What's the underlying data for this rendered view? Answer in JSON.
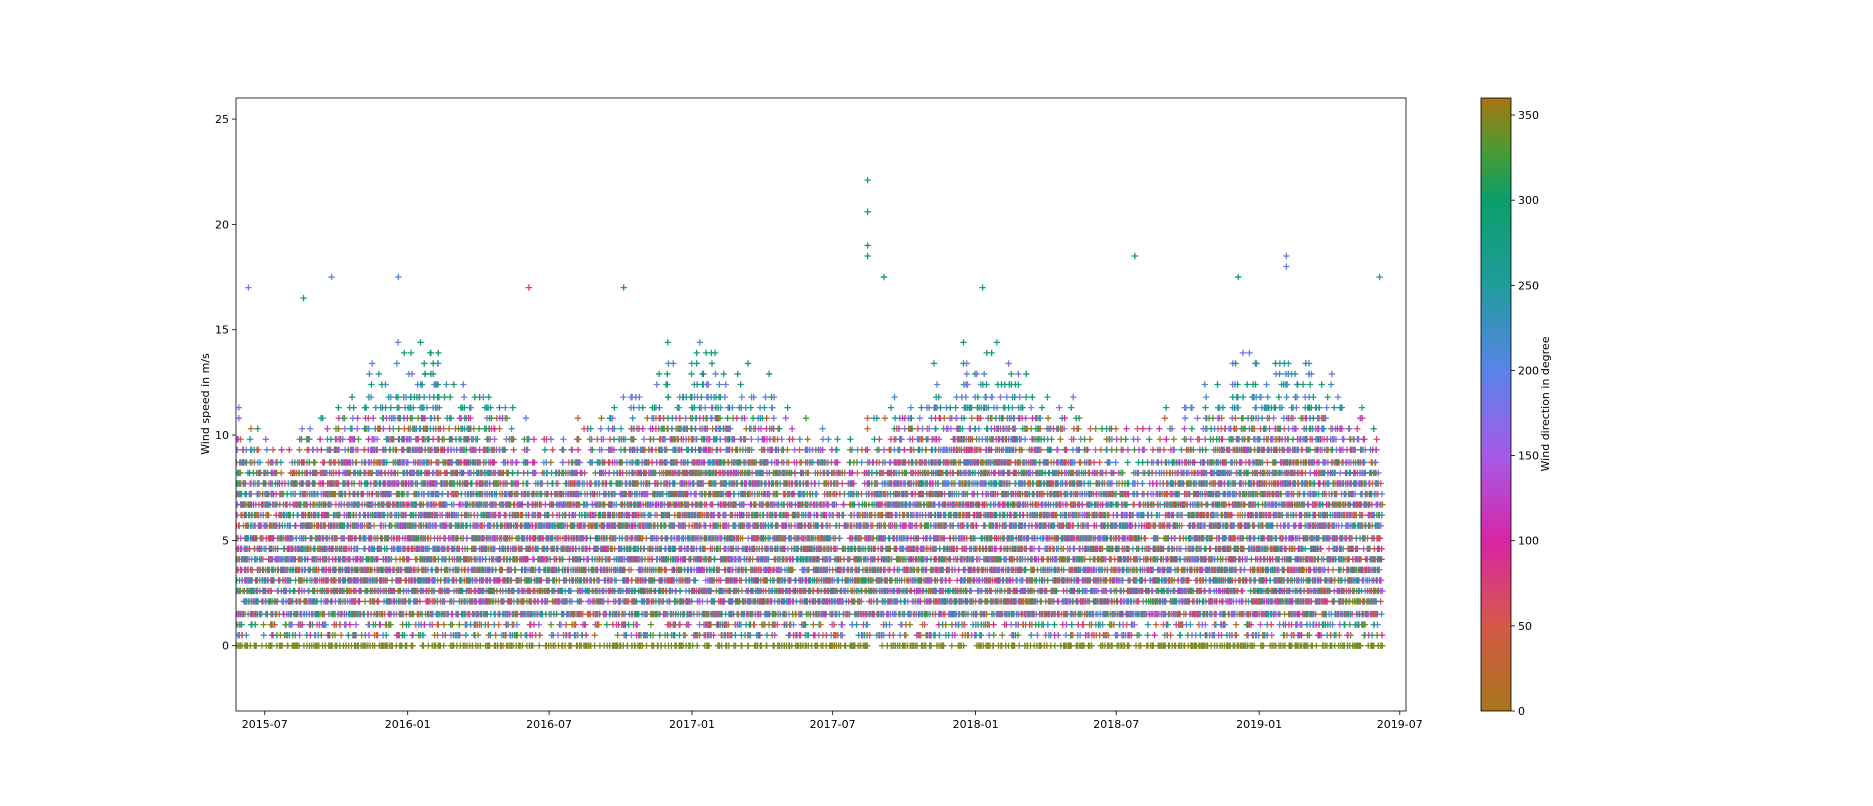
{
  "chart_data": {
    "type": "scatter",
    "marker": "plus",
    "title": "",
    "xlabel": "",
    "ylabel": "Wind speed in m/s",
    "xlim": [
      "2015-05-25",
      "2019-07-09"
    ],
    "ylim": [
      -3.1,
      26.0
    ],
    "grid": false,
    "x_ticks": [
      "2015-07",
      "2016-01",
      "2016-07",
      "2017-01",
      "2017-07",
      "2018-01",
      "2018-07",
      "2019-01",
      "2019-07"
    ],
    "y_ticks": [
      0,
      5,
      10,
      15,
      20,
      25
    ],
    "x_data_range": [
      "2015-05-26",
      "2019-06-08"
    ],
    "speed_levels": [
      0,
      0.5,
      1.0,
      1.5,
      2.1,
      2.6,
      3.1,
      3.6,
      4.1,
      4.6,
      5.1,
      5.7,
      6.2,
      6.7,
      7.2,
      7.7,
      8.2,
      8.7,
      9.3,
      9.8,
      10.3,
      10.8,
      11.3,
      11.8,
      12.4,
      12.9,
      13.4,
      13.9,
      14.4,
      14.9,
      15.4,
      15.9,
      16.5,
      17.0,
      17.5,
      18.0,
      18.5,
      19.0,
      20.6,
      22.1
    ],
    "notable_points": [
      {
        "x": "2017-08-15",
        "y": 22.1,
        "direction": 290
      },
      {
        "x": "2017-08-15",
        "y": 20.6,
        "direction": 290
      },
      {
        "x": "2017-08-15",
        "y": 19.0,
        "direction": 290
      },
      {
        "x": "2017-08-15",
        "y": 18.5,
        "direction": 290
      },
      {
        "x": "2017-09-05",
        "y": 17.5,
        "direction": 285
      },
      {
        "x": "2018-07-25",
        "y": 18.5,
        "direction": 285
      },
      {
        "x": "2019-02-05",
        "y": 18.5,
        "direction": 200
      },
      {
        "x": "2019-02-05",
        "y": 18.0,
        "direction": 200
      },
      {
        "x": "2015-09-25",
        "y": 17.5,
        "direction": 200
      },
      {
        "x": "2015-12-20",
        "y": 17.5,
        "direction": 200
      },
      {
        "x": "2016-06-05",
        "y": 17.0,
        "direction": 80
      },
      {
        "x": "2016-10-05",
        "y": 17.0,
        "direction": 290
      },
      {
        "x": "2018-01-10",
        "y": 17.0,
        "direction": 270
      },
      {
        "x": "2018-12-05",
        "y": 17.5,
        "direction": 290
      },
      {
        "x": "2019-06-05",
        "y": 17.5,
        "direction": 230
      },
      {
        "x": "2015-06-10",
        "y": 17.0,
        "direction": 200
      },
      {
        "x": "2015-08-20",
        "y": 16.5,
        "direction": 290
      }
    ],
    "colorbar": {
      "label": "Wind direction in degree",
      "range": [
        0,
        360
      ],
      "ticks": [
        0,
        50,
        100,
        150,
        200,
        250,
        300,
        350
      ],
      "colormap": [
        {
          "value": 0,
          "color": "#a8761d"
        },
        {
          "value": 50,
          "color": "#d45a48"
        },
        {
          "value": 100,
          "color": "#d924a4"
        },
        {
          "value": 150,
          "color": "#a45be8"
        },
        {
          "value": 200,
          "color": "#5a83e8"
        },
        {
          "value": 250,
          "color": "#1f9c9c"
        },
        {
          "value": 300,
          "color": "#0b9e6a"
        },
        {
          "value": 330,
          "color": "#4c9a30"
        },
        {
          "value": 360,
          "color": "#a67514"
        }
      ]
    }
  }
}
